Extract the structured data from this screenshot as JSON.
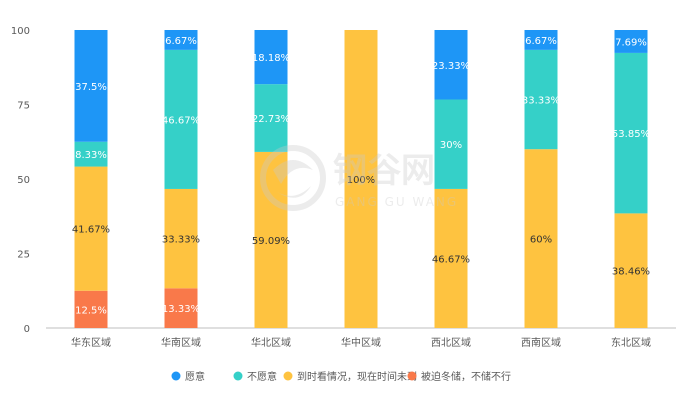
{
  "watermark": {
    "text_cn": "钢谷网",
    "text_en": "GANG GU WANG"
  },
  "colors": {
    "axis": "#bfbfbf",
    "tick_text": "#595959",
    "label_dark": "#333333",
    "label_light": "#ffffff"
  },
  "chart_data": {
    "type": "bar",
    "stacked": true,
    "categories": [
      "华东区域",
      "华南区域",
      "华北区域",
      "华中区域",
      "西北区域",
      "西南区域",
      "东北区域"
    ],
    "ylim": [
      0,
      100
    ],
    "yticks": [
      0,
      25,
      50,
      75,
      100
    ],
    "grid": false,
    "legend_position": "bottom",
    "series": [
      {
        "name": "被迫冬储，不储不行",
        "color": "#f9794a",
        "label_color": "#ffffff",
        "values": [
          12.5,
          13.33,
          0,
          0,
          0,
          0,
          0
        ],
        "labels": [
          "12.5%",
          "13.33%",
          "",
          "",
          "",
          "",
          ""
        ]
      },
      {
        "name": "到时看情况，现在时间未到",
        "color": "#fec340",
        "label_color": "#333333",
        "values": [
          41.67,
          33.33,
          59.09,
          100,
          46.67,
          60,
          38.46
        ],
        "labels": [
          "41.67%",
          "33.33%",
          "59.09%",
          "100%",
          "46.67%",
          "60%",
          "38.46%"
        ]
      },
      {
        "name": "不愿意",
        "color": "#35d0c8",
        "label_color": "#ffffff",
        "values": [
          8.33,
          46.67,
          22.73,
          0,
          30,
          33.33,
          53.85
        ],
        "labels": [
          "8.33%",
          "46.67%",
          "22.73%",
          "",
          "30%",
          "33.33%",
          "53.85%"
        ]
      },
      {
        "name": "愿意",
        "color": "#1e96f6",
        "label_color": "#ffffff",
        "values": [
          37.5,
          6.67,
          18.18,
          0,
          23.33,
          6.67,
          7.69
        ],
        "labels": [
          "37.5%",
          "6.67%",
          "18.18%",
          "",
          "23.33%",
          "6.67%",
          "7.69%"
        ]
      }
    ],
    "legend_order": [
      "愿意",
      "不愿意",
      "到时看情况，现在时间未到",
      "被迫冬储，不储不行"
    ]
  }
}
